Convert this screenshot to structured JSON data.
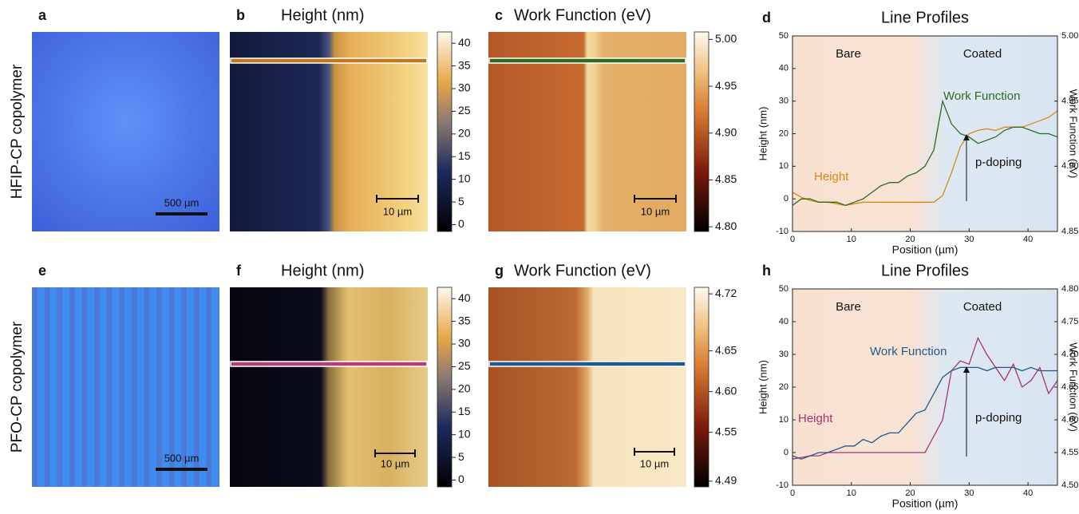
{
  "rows": [
    {
      "label": "HFIP-CP copolymer"
    },
    {
      "label": "PFO-CP copolymer"
    }
  ],
  "panels": [
    {
      "letter": "a",
      "scale_bar": "500 µm"
    },
    {
      "letter": "b",
      "title": "Height (nm)",
      "scale_bar": "10 µm",
      "colorbar": {
        "lim": [
          -1.5,
          42.5
        ],
        "ticks": [
          0,
          5,
          10,
          15,
          20,
          25,
          30,
          35,
          40
        ]
      }
    },
    {
      "letter": "c",
      "title": "Work Function (eV)",
      "scale_bar": "10 µm",
      "colorbar": {
        "lim": [
          4.795,
          5.008
        ],
        "ticks": [
          {
            "value": 4.8,
            "label": "4.80"
          },
          4.85,
          {
            "value": 4.9,
            "label": "4.90"
          },
          4.95,
          {
            "value": 5,
            "label": "5.00"
          }
        ]
      }
    },
    {
      "letter": "e",
      "scale_bar": "500 µm"
    },
    {
      "letter": "f",
      "title": "Height (nm)",
      "scale_bar": "10 µm",
      "colorbar": {
        "lim": [
          -1.5,
          42.5
        ],
        "ticks": [
          0,
          5,
          10,
          15,
          20,
          25,
          30,
          35,
          40
        ]
      }
    },
    {
      "letter": "g",
      "title": "Work Function (eV)",
      "scale_bar": "10 µm",
      "colorbar": {
        "lim": [
          4.483,
          4.728
        ],
        "ticks": [
          4.49,
          4.55,
          {
            "value": 4.6,
            "label": "4.60"
          },
          4.65,
          4.72
        ]
      }
    }
  ],
  "chart_data": [
    {
      "type": "line",
      "letter": "d",
      "title": "Line Profiles",
      "x_label": "Position (µm)",
      "y_label": "Height (nm)",
      "y2_label": "Work Function (eV)",
      "regions": [
        "Bare",
        "Coated"
      ],
      "annotation": "p-doping",
      "xlim": [
        0,
        45
      ],
      "xticks": [
        0,
        10,
        20,
        30,
        40
      ],
      "ylim": [
        -10,
        50
      ],
      "yticks": [
        -10,
        0,
        10,
        20,
        30,
        40,
        50
      ],
      "y2lim": [
        4.85,
        5.0
      ],
      "y2ticks": [
        4.85,
        {
          "value": 4.9,
          "label": "4.90"
        },
        4.95,
        {
          "value": 5,
          "label": "5.00"
        }
      ],
      "x": [
        0,
        1.5,
        3,
        4.5,
        6,
        7.5,
        9,
        10.5,
        12,
        13.5,
        15,
        16.5,
        18,
        19.5,
        21,
        22.5,
        24,
        25.5,
        27,
        28.5,
        30,
        31.5,
        33,
        34.5,
        36,
        37.5,
        39,
        40.5,
        42,
        43.5,
        45
      ],
      "series": [
        {
          "name": "Height",
          "color": "#d98a12",
          "values": [
            2,
            0.5,
            -0.5,
            -1,
            -1,
            -1.5,
            -2,
            -1.5,
            -1,
            -1,
            -1,
            -1,
            -1,
            -1,
            -1,
            -1,
            -1,
            1,
            8,
            16,
            20,
            21,
            21.5,
            21,
            22,
            22,
            22,
            23,
            24,
            25,
            27
          ]
        },
        {
          "name": "Work Function",
          "color": "#2e6b1e",
          "axis": "y2",
          "values": [
            4.87,
            4.875,
            4.875,
            4.8725,
            4.8725,
            4.8725,
            4.87,
            4.8725,
            4.875,
            4.88,
            4.885,
            4.8875,
            4.8875,
            4.8925,
            4.895,
            4.9,
            4.9125,
            4.95,
            4.9325,
            4.925,
            4.9225,
            4.9175,
            4.92,
            4.9225,
            4.9275,
            4.93,
            4.93,
            4.9275,
            4.925,
            4.925,
            4.9225
          ]
        }
      ]
    },
    {
      "type": "line",
      "letter": "h",
      "title": "Line Profiles",
      "x_label": "Position (µm)",
      "y_label": "Height (nm)",
      "y2_label": "Work Function (eV)",
      "regions": [
        "Bare",
        "Coated"
      ],
      "annotation": "p-doping",
      "xlim": [
        0,
        45
      ],
      "xticks": [
        0,
        10,
        20,
        30,
        40
      ],
      "ylim": [
        -10,
        50
      ],
      "yticks": [
        -10,
        0,
        10,
        20,
        30,
        40,
        50
      ],
      "y2lim": [
        4.5,
        4.8
      ],
      "y2ticks": [
        {
          "value": 4.5,
          "label": "4.50"
        },
        4.55,
        {
          "value": 4.6,
          "label": "4.60"
        },
        4.65,
        {
          "value": 4.7,
          "label": "4.70"
        },
        4.75,
        {
          "value": 4.8,
          "label": "4.80"
        }
      ],
      "x": [
        0,
        1.5,
        3,
        4.5,
        6,
        7.5,
        9,
        10.5,
        12,
        13.5,
        15,
        16.5,
        18,
        19.5,
        21,
        22.5,
        24,
        25.5,
        27,
        28.5,
        30,
        31.5,
        33,
        34.5,
        36,
        37.5,
        39,
        40.5,
        42,
        43.5,
        45
      ],
      "series": [
        {
          "name": "Height",
          "color": "#a8346e",
          "values": [
            -2,
            -1.5,
            -1,
            -1,
            0,
            0,
            0,
            0,
            0,
            0,
            0,
            0,
            0,
            0,
            0,
            0,
            5,
            10,
            25,
            28,
            27,
            35,
            30,
            26,
            22,
            27,
            20,
            22,
            26,
            18,
            22
          ]
        },
        {
          "name": "Work Function",
          "color": "#1f5a8a",
          "axis": "y2",
          "values": [
            4.545,
            4.54,
            4.545,
            4.55,
            4.55,
            4.555,
            4.56,
            4.56,
            4.57,
            4.565,
            4.575,
            4.58,
            4.58,
            4.595,
            4.61,
            4.615,
            4.64,
            4.665,
            4.675,
            4.68,
            4.68,
            4.68,
            4.675,
            4.68,
            4.68,
            4.68,
            4.675,
            4.68,
            4.675,
            4.675,
            4.675
          ]
        }
      ]
    }
  ]
}
